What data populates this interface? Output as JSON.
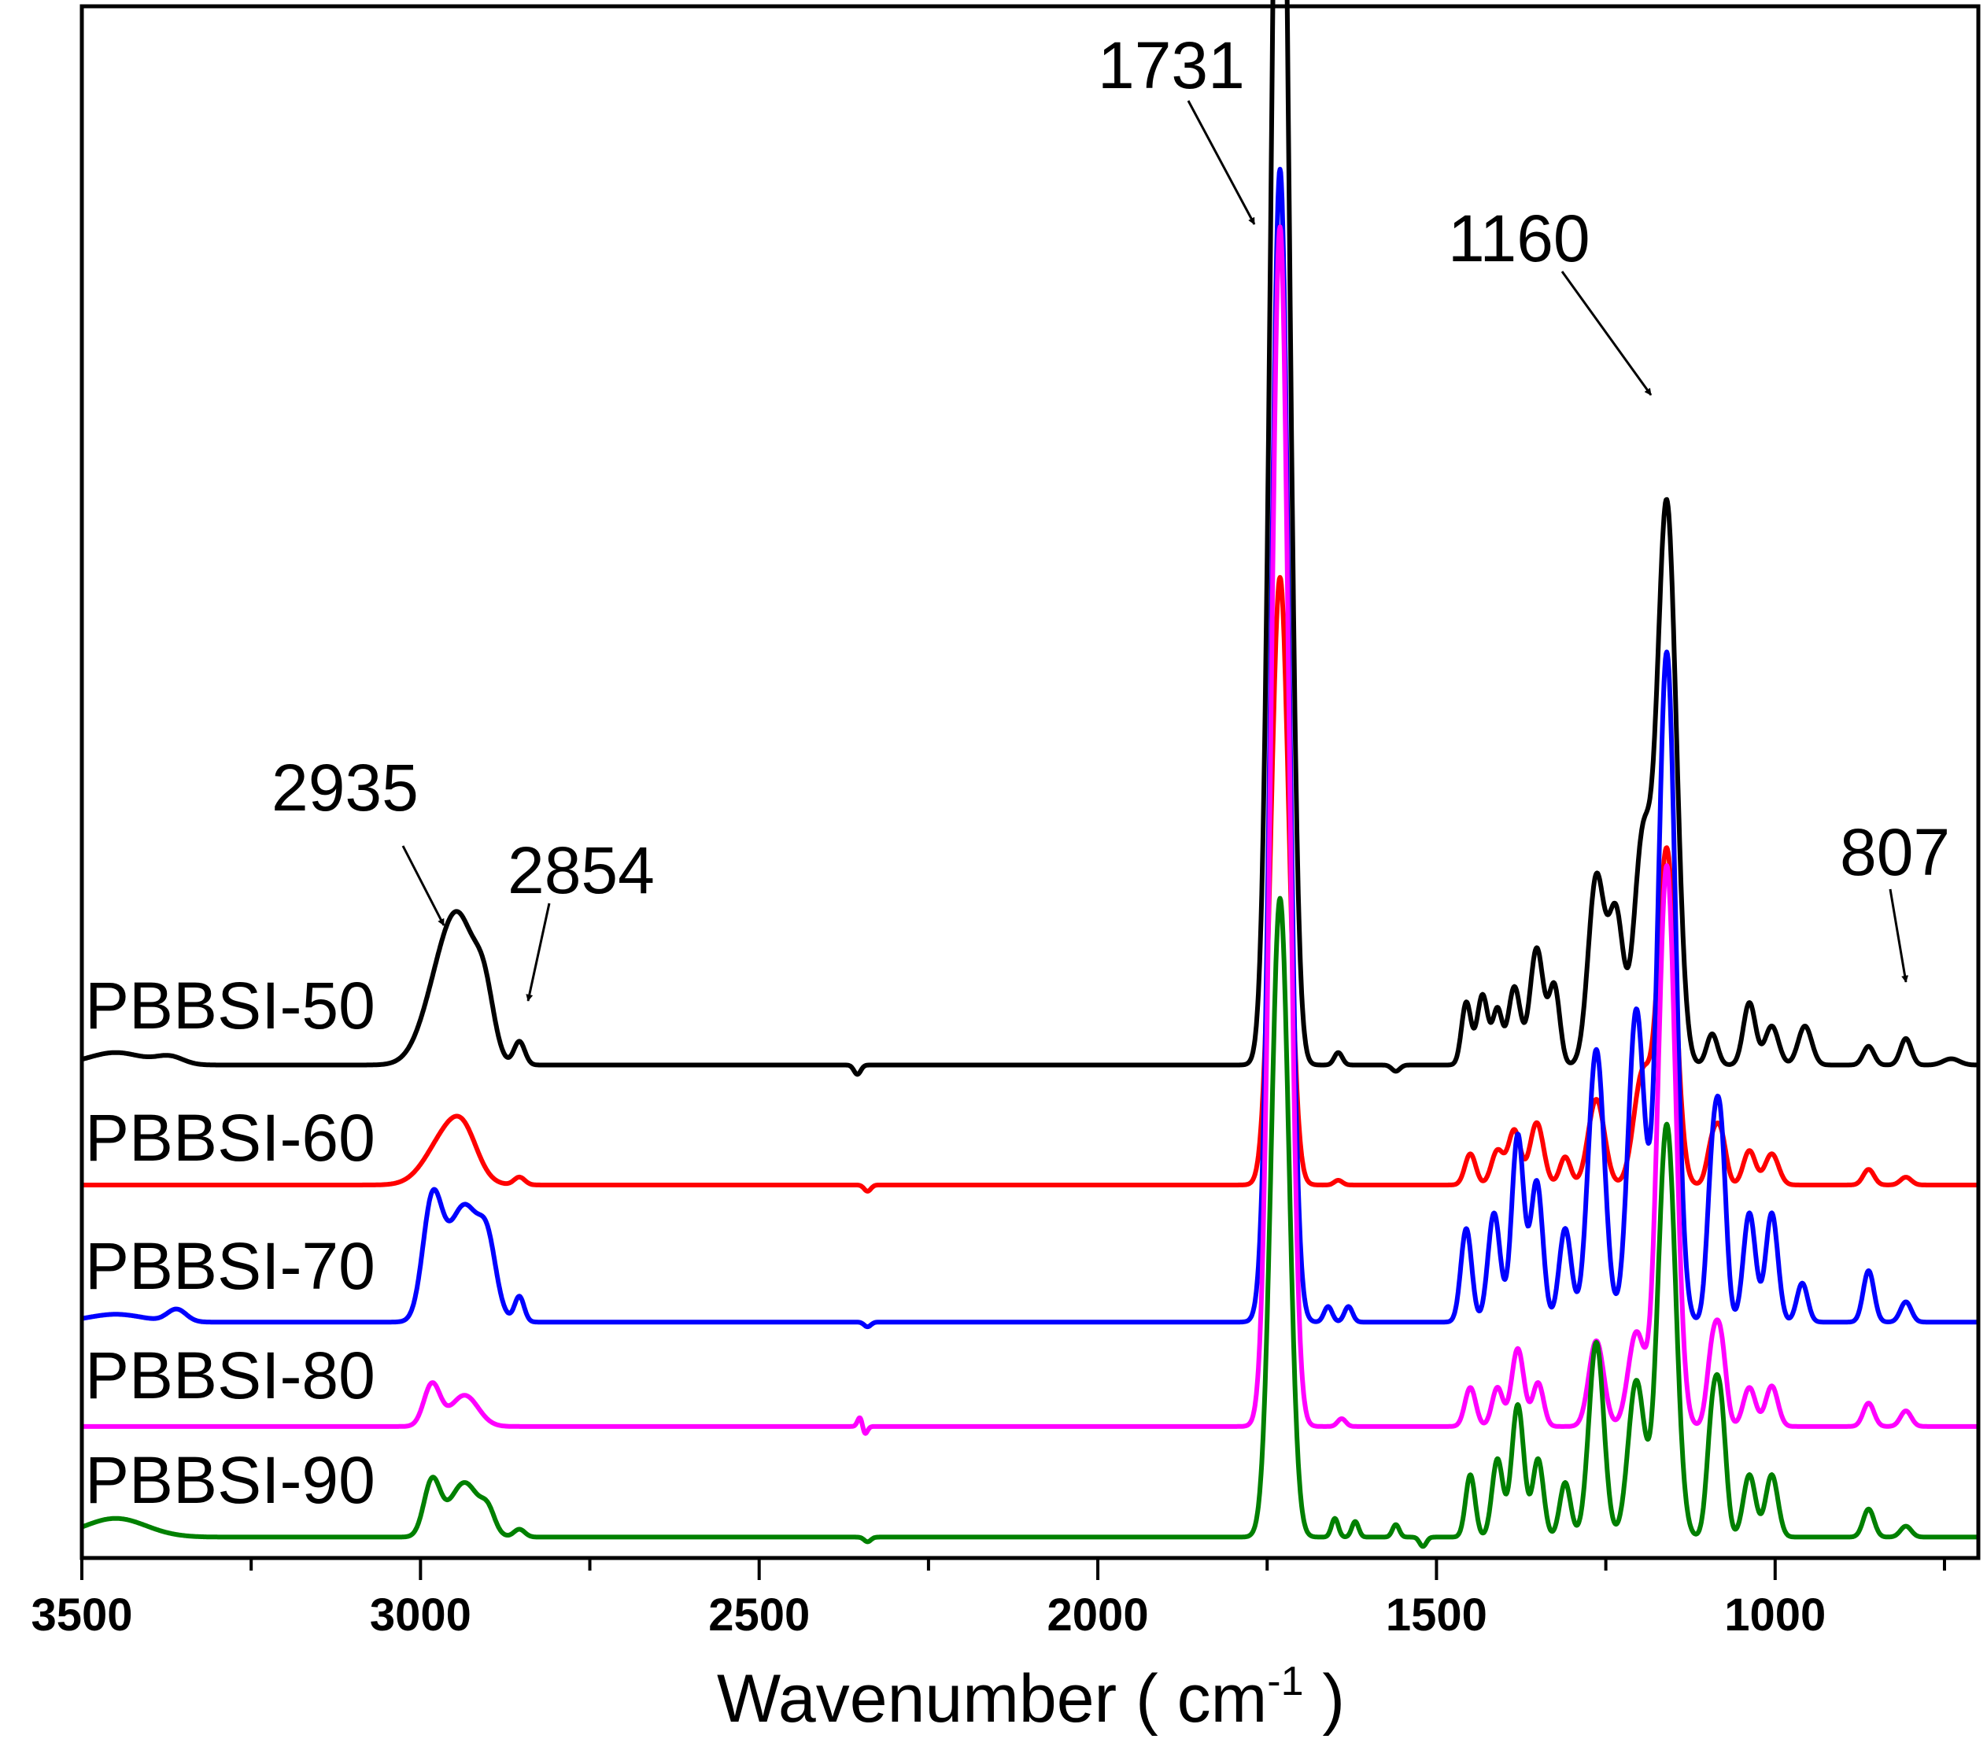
{
  "chart_data": {
    "type": "line",
    "title": "",
    "xlabel": "Wavenumber ( cm",
    "xlabel_sup": "-1",
    "xlabel_close": " )",
    "ylabel": "",
    "xlim": [
      3500,
      700
    ],
    "x_reversed": true,
    "ylim": [
      0,
      1
    ],
    "y_ticks_visible": false,
    "x_ticks": [
      3500,
      3000,
      2500,
      2000,
      1500,
      1000
    ],
    "x_tick_labels": [
      "3500",
      "3000",
      "2500",
      "2000",
      "1500",
      "1000"
    ],
    "legend": "inline labels at left",
    "series": [
      {
        "name": "PBBSI-50",
        "color": "#000000",
        "baseline": 0.325,
        "peaks": [
          {
            "x": 3450,
            "h": 0.008,
            "w": 40
          },
          {
            "x": 3370,
            "h": 0.005,
            "w": 20
          },
          {
            "x": 2960,
            "h": 0.07,
            "w": 30
          },
          {
            "x": 2935,
            "h": 0.04,
            "w": 22
          },
          {
            "x": 2905,
            "h": 0.035,
            "w": 14
          },
          {
            "x": 2854,
            "h": 0.015,
            "w": 8
          },
          {
            "x": 2355,
            "h": -0.006,
            "w": 5
          },
          {
            "x": 1731,
            "h": 0.95,
            "w": 13
          },
          {
            "x": 1645,
            "h": 0.008,
            "w": 6
          },
          {
            "x": 1560,
            "h": -0.004,
            "w": 6
          },
          {
            "x": 1456,
            "h": 0.04,
            "w": 7
          },
          {
            "x": 1432,
            "h": 0.045,
            "w": 8
          },
          {
            "x": 1410,
            "h": 0.035,
            "w": 7
          },
          {
            "x": 1385,
            "h": 0.05,
            "w": 9
          },
          {
            "x": 1352,
            "h": 0.075,
            "w": 10
          },
          {
            "x": 1326,
            "h": 0.05,
            "w": 8
          },
          {
            "x": 1264,
            "h": 0.12,
            "w": 12
          },
          {
            "x": 1235,
            "h": 0.095,
            "w": 11
          },
          {
            "x": 1196,
            "h": 0.14,
            "w": 13
          },
          {
            "x": 1160,
            "h": 0.36,
            "w": 14
          },
          {
            "x": 1093,
            "h": 0.02,
            "w": 8
          },
          {
            "x": 1038,
            "h": 0.04,
            "w": 9
          },
          {
            "x": 1005,
            "h": 0.025,
            "w": 10
          },
          {
            "x": 956,
            "h": 0.025,
            "w": 10
          },
          {
            "x": 862,
            "h": 0.012,
            "w": 8
          },
          {
            "x": 807,
            "h": 0.017,
            "w": 8
          },
          {
            "x": 740,
            "h": 0.004,
            "w": 12
          }
        ]
      },
      {
        "name": "PBBSI-60",
        "color": "#ff0000",
        "baseline": 0.248,
        "peaks": [
          {
            "x": 2960,
            "h": 0.032,
            "w": 30
          },
          {
            "x": 2935,
            "h": 0.018,
            "w": 20
          },
          {
            "x": 2854,
            "h": 0.005,
            "w": 8
          },
          {
            "x": 2340,
            "h": -0.004,
            "w": 5
          },
          {
            "x": 1731,
            "h": 0.39,
            "w": 13
          },
          {
            "x": 1645,
            "h": 0.003,
            "w": 6
          },
          {
            "x": 1450,
            "h": 0.02,
            "w": 8
          },
          {
            "x": 1410,
            "h": 0.022,
            "w": 9
          },
          {
            "x": 1385,
            "h": 0.035,
            "w": 9
          },
          {
            "x": 1352,
            "h": 0.04,
            "w": 10
          },
          {
            "x": 1310,
            "h": 0.018,
            "w": 8
          },
          {
            "x": 1264,
            "h": 0.055,
            "w": 12
          },
          {
            "x": 1196,
            "h": 0.07,
            "w": 13
          },
          {
            "x": 1160,
            "h": 0.215,
            "w": 13
          },
          {
            "x": 1093,
            "h": 0.025,
            "w": 8
          },
          {
            "x": 1080,
            "h": 0.03,
            "w": 8
          },
          {
            "x": 1038,
            "h": 0.022,
            "w": 9
          },
          {
            "x": 1005,
            "h": 0.02,
            "w": 10
          },
          {
            "x": 862,
            "h": 0.01,
            "w": 8
          },
          {
            "x": 807,
            "h": 0.005,
            "w": 8
          }
        ]
      },
      {
        "name": "PBBSI-70",
        "color": "#0000ff",
        "baseline": 0.16,
        "peaks": [
          {
            "x": 3450,
            "h": 0.005,
            "w": 40
          },
          {
            "x": 3360,
            "h": 0.008,
            "w": 14
          },
          {
            "x": 2983,
            "h": 0.07,
            "w": 14
          },
          {
            "x": 2935,
            "h": 0.075,
            "w": 26
          },
          {
            "x": 2900,
            "h": 0.03,
            "w": 12
          },
          {
            "x": 2854,
            "h": 0.016,
            "w": 7
          },
          {
            "x": 2340,
            "h": -0.003,
            "w": 5
          },
          {
            "x": 1731,
            "h": 0.74,
            "w": 13
          },
          {
            "x": 1660,
            "h": 0.01,
            "w": 6
          },
          {
            "x": 1630,
            "h": 0.01,
            "w": 6
          },
          {
            "x": 1456,
            "h": 0.06,
            "w": 8
          },
          {
            "x": 1415,
            "h": 0.07,
            "w": 9
          },
          {
            "x": 1380,
            "h": 0.12,
            "w": 9
          },
          {
            "x": 1352,
            "h": 0.09,
            "w": 9
          },
          {
            "x": 1310,
            "h": 0.06,
            "w": 9
          },
          {
            "x": 1264,
            "h": 0.175,
            "w": 12
          },
          {
            "x": 1205,
            "h": 0.2,
            "w": 12
          },
          {
            "x": 1160,
            "h": 0.43,
            "w": 13
          },
          {
            "x": 1093,
            "h": 0.09,
            "w": 8
          },
          {
            "x": 1080,
            "h": 0.11,
            "w": 8
          },
          {
            "x": 1038,
            "h": 0.07,
            "w": 9
          },
          {
            "x": 1005,
            "h": 0.07,
            "w": 9
          },
          {
            "x": 960,
            "h": 0.025,
            "w": 8
          },
          {
            "x": 862,
            "h": 0.033,
            "w": 8
          },
          {
            "x": 807,
            "h": 0.013,
            "w": 8
          }
        ]
      },
      {
        "name": "PBBSI-80",
        "color": "#ff00ff",
        "baseline": 0.093,
        "peaks": [
          {
            "x": 2983,
            "h": 0.027,
            "w": 12
          },
          {
            "x": 2935,
            "h": 0.02,
            "w": 20
          },
          {
            "x": 2350,
            "h": 0.008,
            "w": 4
          },
          {
            "x": 2345,
            "h": -0.007,
            "w": 4
          },
          {
            "x": 1731,
            "h": 0.77,
            "w": 13
          },
          {
            "x": 1640,
            "h": 0.005,
            "w": 6
          },
          {
            "x": 1450,
            "h": 0.025,
            "w": 8
          },
          {
            "x": 1410,
            "h": 0.025,
            "w": 8
          },
          {
            "x": 1380,
            "h": 0.05,
            "w": 9
          },
          {
            "x": 1350,
            "h": 0.028,
            "w": 8
          },
          {
            "x": 1264,
            "h": 0.055,
            "w": 11
          },
          {
            "x": 1205,
            "h": 0.06,
            "w": 12
          },
          {
            "x": 1160,
            "h": 0.36,
            "w": 13
          },
          {
            "x": 1093,
            "h": 0.045,
            "w": 8
          },
          {
            "x": 1080,
            "h": 0.05,
            "w": 8
          },
          {
            "x": 1038,
            "h": 0.025,
            "w": 9
          },
          {
            "x": 1005,
            "h": 0.026,
            "w": 9
          },
          {
            "x": 862,
            "h": 0.015,
            "w": 8
          },
          {
            "x": 807,
            "h": 0.01,
            "w": 8
          }
        ]
      },
      {
        "name": "PBBSI-90",
        "color": "#008000",
        "baseline": 0.022,
        "peaks": [
          {
            "x": 3450,
            "h": 0.012,
            "w": 45
          },
          {
            "x": 2983,
            "h": 0.035,
            "w": 12
          },
          {
            "x": 2935,
            "h": 0.035,
            "w": 22
          },
          {
            "x": 2900,
            "h": 0.012,
            "w": 10
          },
          {
            "x": 2854,
            "h": 0.005,
            "w": 8
          },
          {
            "x": 2340,
            "h": -0.003,
            "w": 5
          },
          {
            "x": 1731,
            "h": 0.41,
            "w": 13
          },
          {
            "x": 1650,
            "h": 0.012,
            "w": 5
          },
          {
            "x": 1620,
            "h": 0.01,
            "w": 5
          },
          {
            "x": 1560,
            "h": 0.008,
            "w": 5
          },
          {
            "x": 1520,
            "h": -0.006,
            "w": 5
          },
          {
            "x": 1450,
            "h": 0.04,
            "w": 7
          },
          {
            "x": 1410,
            "h": 0.05,
            "w": 8
          },
          {
            "x": 1380,
            "h": 0.085,
            "w": 9
          },
          {
            "x": 1350,
            "h": 0.05,
            "w": 8
          },
          {
            "x": 1310,
            "h": 0.035,
            "w": 8
          },
          {
            "x": 1264,
            "h": 0.125,
            "w": 11
          },
          {
            "x": 1205,
            "h": 0.1,
            "w": 12
          },
          {
            "x": 1160,
            "h": 0.265,
            "w": 13
          },
          {
            "x": 1093,
            "h": 0.07,
            "w": 8
          },
          {
            "x": 1080,
            "h": 0.075,
            "w": 8
          },
          {
            "x": 1038,
            "h": 0.04,
            "w": 9
          },
          {
            "x": 1005,
            "h": 0.04,
            "w": 9
          },
          {
            "x": 862,
            "h": 0.018,
            "w": 8
          },
          {
            "x": 807,
            "h": 0.007,
            "w": 8
          }
        ]
      }
    ],
    "annotations": [
      {
        "label": "1731",
        "x": 1731
      },
      {
        "label": "1160",
        "x": 1160
      },
      {
        "label": "2935",
        "x": 2935
      },
      {
        "label": "2854",
        "x": 2854
      },
      {
        "label": "807",
        "x": 807
      }
    ]
  }
}
